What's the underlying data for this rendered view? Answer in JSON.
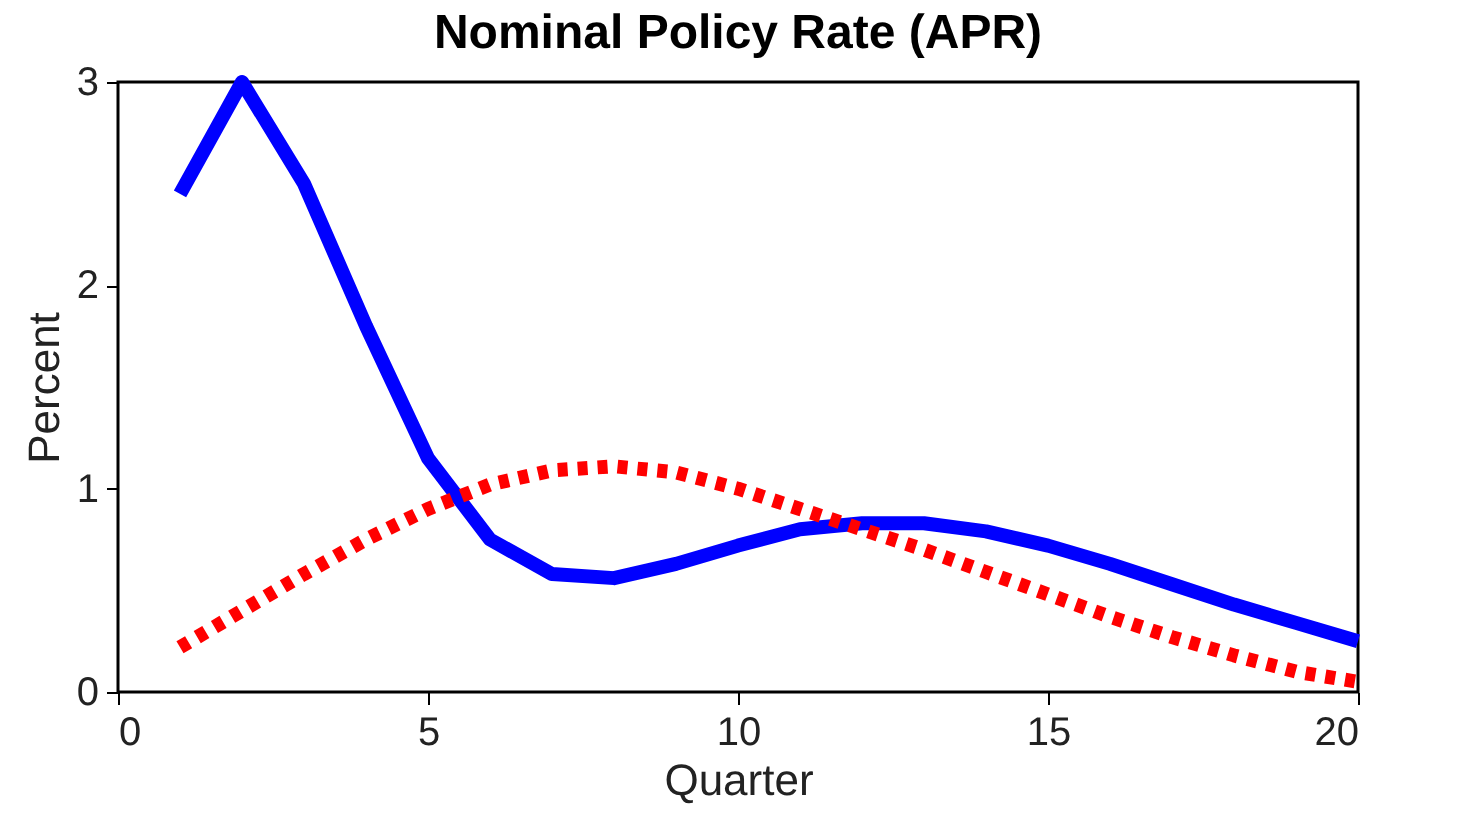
{
  "chart_data": {
    "type": "line",
    "title": "Nominal Policy Rate (APR)",
    "xlabel": "Quarter",
    "ylabel": "Percent",
    "x": [
      1,
      2,
      3,
      4,
      5,
      6,
      7,
      8,
      9,
      10,
      11,
      12,
      13,
      14,
      15,
      16,
      17,
      18,
      19,
      20
    ],
    "series": [
      {
        "color": "#0000ff",
        "line_style": "solid",
        "values": [
          2.45,
          3.0,
          2.5,
          1.8,
          1.15,
          0.75,
          0.58,
          0.56,
          0.63,
          0.72,
          0.8,
          0.83,
          0.83,
          0.79,
          0.72,
          0.63,
          0.53,
          0.43,
          0.34,
          0.25
        ]
      },
      {
        "color": "#ff0000",
        "line_style": "dotted",
        "values": [
          0.22,
          0.4,
          0.58,
          0.75,
          0.9,
          1.02,
          1.09,
          1.11,
          1.08,
          1.0,
          0.9,
          0.8,
          0.7,
          0.59,
          0.48,
          0.37,
          0.27,
          0.18,
          0.1,
          0.05
        ]
      }
    ],
    "xlim": [
      0,
      20
    ],
    "ylim": [
      0,
      3
    ],
    "xticks": [
      0,
      5,
      10,
      15,
      20
    ],
    "yticks": [
      0,
      1,
      2,
      3
    ],
    "grid": false,
    "marker": "none"
  }
}
